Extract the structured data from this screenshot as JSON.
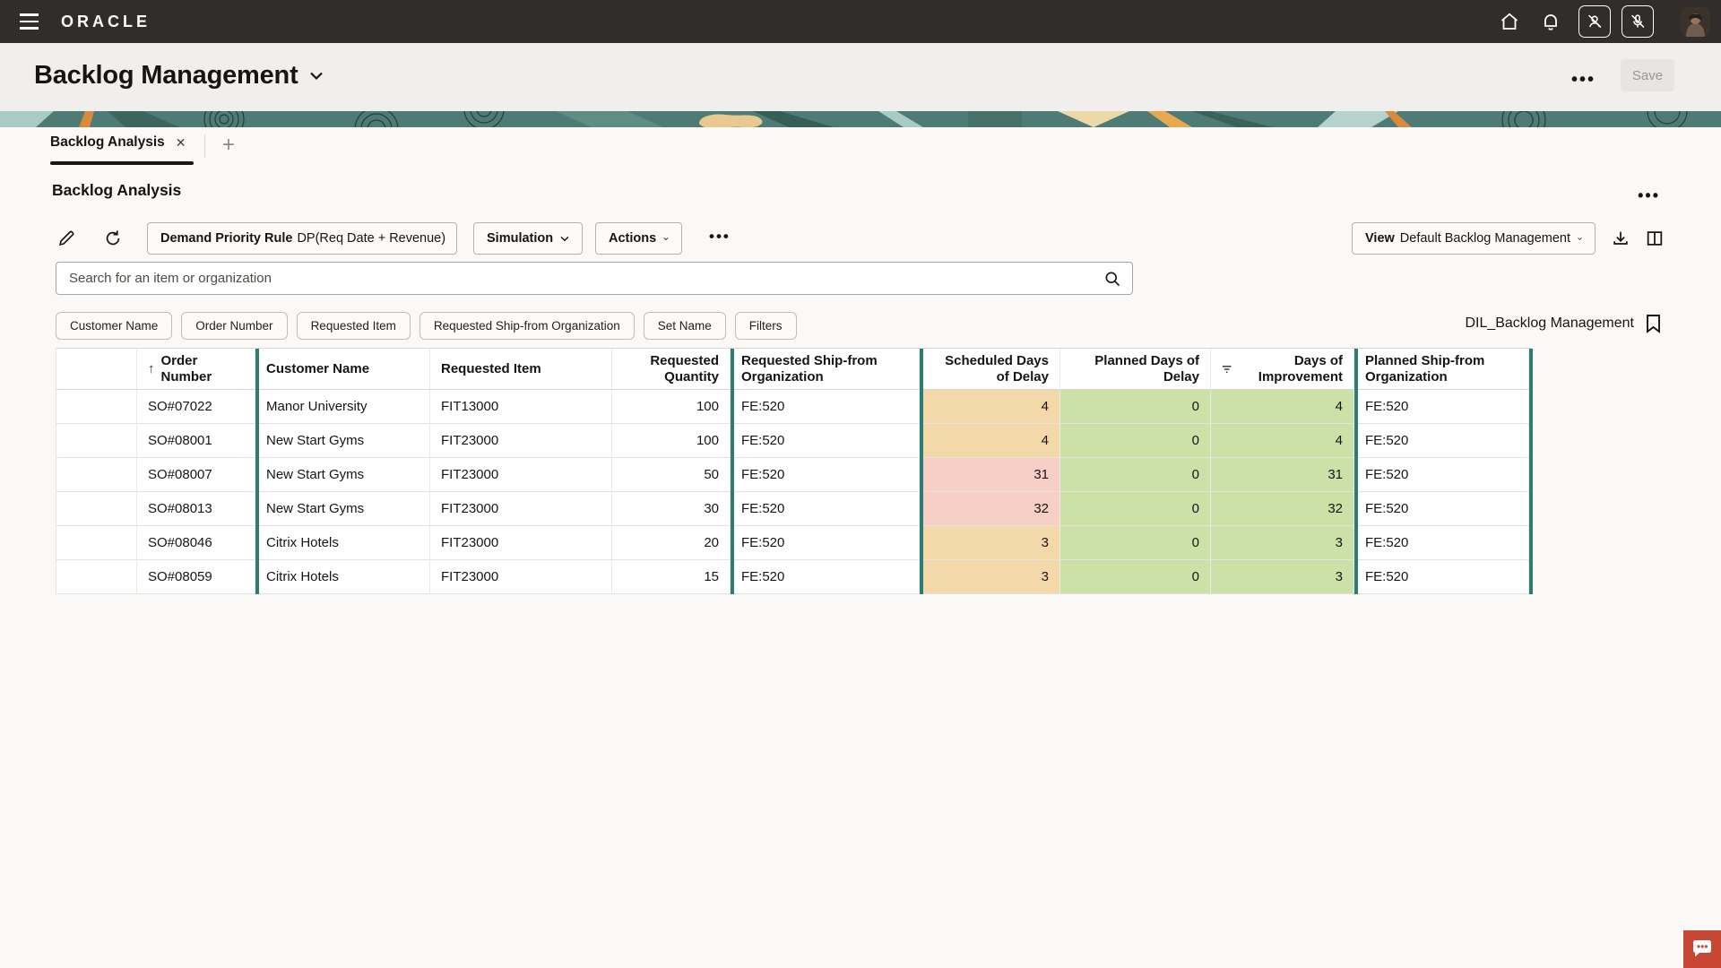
{
  "topbar": {
    "brand": "ORACLE"
  },
  "page": {
    "title": "Backlog Management",
    "save_label": "Save",
    "more_label": "•••"
  },
  "tab": {
    "label": "Backlog Analysis",
    "close": "✕",
    "add": "+"
  },
  "section": {
    "title": "Backlog Analysis",
    "more_label": "•••"
  },
  "toolbar": {
    "priority_rule_label": "Demand Priority Rule",
    "priority_rule_value": "DP(Req Date + Revenue)",
    "simulation_label": "Simulation",
    "actions_label": "Actions",
    "more_label": "•••",
    "view_label": "View",
    "view_value": "Default Backlog Management"
  },
  "search": {
    "placeholder": "Search for an item or organization",
    "value": ""
  },
  "chips": {
    "items": [
      "Customer Name",
      "Order Number",
      "Requested Item",
      "Requested Ship-from Organization",
      "Set Name",
      "Filters"
    ]
  },
  "saved_search": {
    "name": "DIL_Backlog Management"
  },
  "table": {
    "columns": [
      {
        "label": ""
      },
      {
        "label": "Order Number",
        "sort": "ascending"
      },
      {
        "label": "Customer Name"
      },
      {
        "label": "Requested Item"
      },
      {
        "label": "Requested Quantity"
      },
      {
        "label": "Requested Ship-from Organization"
      },
      {
        "label": "Scheduled Days of Delay"
      },
      {
        "label": "Planned Days of Delay"
      },
      {
        "label": "Days of Improvement",
        "filter": true
      },
      {
        "label": "Planned Ship-from Organization"
      }
    ],
    "rows": [
      {
        "order": "SO#07022",
        "customer": "Manor University",
        "item": "FIT13000",
        "qty": "100",
        "ship_from": "FE:520",
        "scheduled_delay": "4",
        "scheduled_severity": "warning",
        "planned_delay": "0",
        "improvement": "4",
        "planned_ship_from": "FE:520"
      },
      {
        "order": "SO#08001",
        "customer": "New Start Gyms",
        "item": "FIT23000",
        "qty": "100",
        "ship_from": "FE:520",
        "scheduled_delay": "4",
        "scheduled_severity": "warning",
        "planned_delay": "0",
        "improvement": "4",
        "planned_ship_from": "FE:520"
      },
      {
        "order": "SO#08007",
        "customer": "New Start Gyms",
        "item": "FIT23000",
        "qty": "50",
        "ship_from": "FE:520",
        "scheduled_delay": "31",
        "scheduled_severity": "critical",
        "planned_delay": "0",
        "improvement": "31",
        "planned_ship_from": "FE:520"
      },
      {
        "order": "SO#08013",
        "customer": "New Start Gyms",
        "item": "FIT23000",
        "qty": "30",
        "ship_from": "FE:520",
        "scheduled_delay": "32",
        "scheduled_severity": "critical",
        "planned_delay": "0",
        "improvement": "32",
        "planned_ship_from": "FE:520"
      },
      {
        "order": "SO#08046",
        "customer": "Citrix Hotels",
        "item": "FIT23000",
        "qty": "20",
        "ship_from": "FE:520",
        "scheduled_delay": "3",
        "scheduled_severity": "warning",
        "planned_delay": "0",
        "improvement": "3",
        "planned_ship_from": "FE:520"
      },
      {
        "order": "SO#08059",
        "customer": "Citrix Hotels",
        "item": "FIT23000",
        "qty": "15",
        "ship_from": "FE:520",
        "scheduled_delay": "3",
        "scheduled_severity": "warning",
        "planned_delay": "0",
        "improvement": "3",
        "planned_ship_from": "FE:520"
      }
    ],
    "sort_glyph": "↑"
  },
  "icons": {
    "list": [
      "menu-icon",
      "home-icon",
      "bell-icon",
      "user-slash-icon",
      "mic-slash-icon",
      "avatar",
      "pencil-icon",
      "refresh-icon",
      "chevron-down-icon",
      "download-icon",
      "split-columns-icon",
      "search-icon",
      "bookmark-icon",
      "filter-icon",
      "chat-bubble-icon",
      "close-icon",
      "plus-icon"
    ]
  },
  "colors": {
    "topbar_bg": "#312D2A",
    "header_bg": "#F1EFED",
    "accent_teal": "#2E7D74",
    "warning_cell": "#F3D8A9",
    "critical_cell": "#F7CFC7",
    "positive_cell": "#CBE1A8",
    "chat_red": "#C74634"
  }
}
